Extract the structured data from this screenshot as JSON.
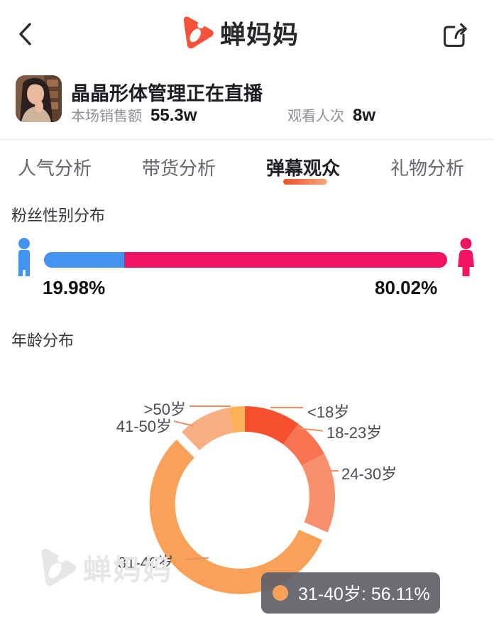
{
  "header": {
    "app_name": "蝉妈妈",
    "icons": {
      "back": "chevron-left",
      "share": "share-box-arrow",
      "logo": "chanmama-cicada-play-triangle"
    }
  },
  "profile": {
    "title": "晶晶形体管理正在直播",
    "stats": [
      {
        "label": "本场销售额",
        "value": "55.3w"
      },
      {
        "label": "观看人次",
        "value": "8w"
      }
    ]
  },
  "tabs": [
    {
      "label": "人气分析",
      "active": false
    },
    {
      "label": "带货分析",
      "active": false
    },
    {
      "label": "弹幕观众",
      "active": true
    },
    {
      "label": "礼物分析",
      "active": false
    }
  ],
  "chart_data": [
    {
      "type": "bar",
      "title": "粉丝性别分布",
      "orientation": "horizontal-stacked",
      "categories": [
        "男",
        "女"
      ],
      "values": [
        19.98,
        80.02
      ],
      "unit": "%",
      "value_labels": [
        "19.98%",
        "80.02%"
      ],
      "colors": [
        "#4293f2",
        "#f01463"
      ],
      "icons": [
        "male-person-icon",
        "female-person-icon"
      ],
      "legend_position": "none"
    },
    {
      "type": "pie",
      "subtype": "donut",
      "title": "年龄分布",
      "note": "only the 31-40岁 value is labeled on screen (56.11%); other slice values estimated from arc angles",
      "slices": [
        {
          "label": "<18岁",
          "value": 10.1,
          "color": "#f6502f"
        },
        {
          "label": "18-23岁",
          "value": 7.0,
          "color": "#f87352"
        },
        {
          "label": "24-30岁",
          "value": 14.43,
          "color": "#f8906e"
        },
        {
          "label": "31-40岁",
          "value": 56.11,
          "color": "#f9a158",
          "exploded": true
        },
        {
          "label": "41-50岁",
          "value": 9.47,
          "color": "#f8ad82"
        },
        {
          "label": ">50岁",
          "value": 2.89,
          "color": "#fcb156"
        }
      ],
      "selected_slice": "31-40岁",
      "tooltip_text": "31-40岁: 56.11%",
      "label_style": "outside-with-leader-lines",
      "legend_position": "none"
    }
  ],
  "watermark": {
    "text": "蝉妈妈"
  }
}
